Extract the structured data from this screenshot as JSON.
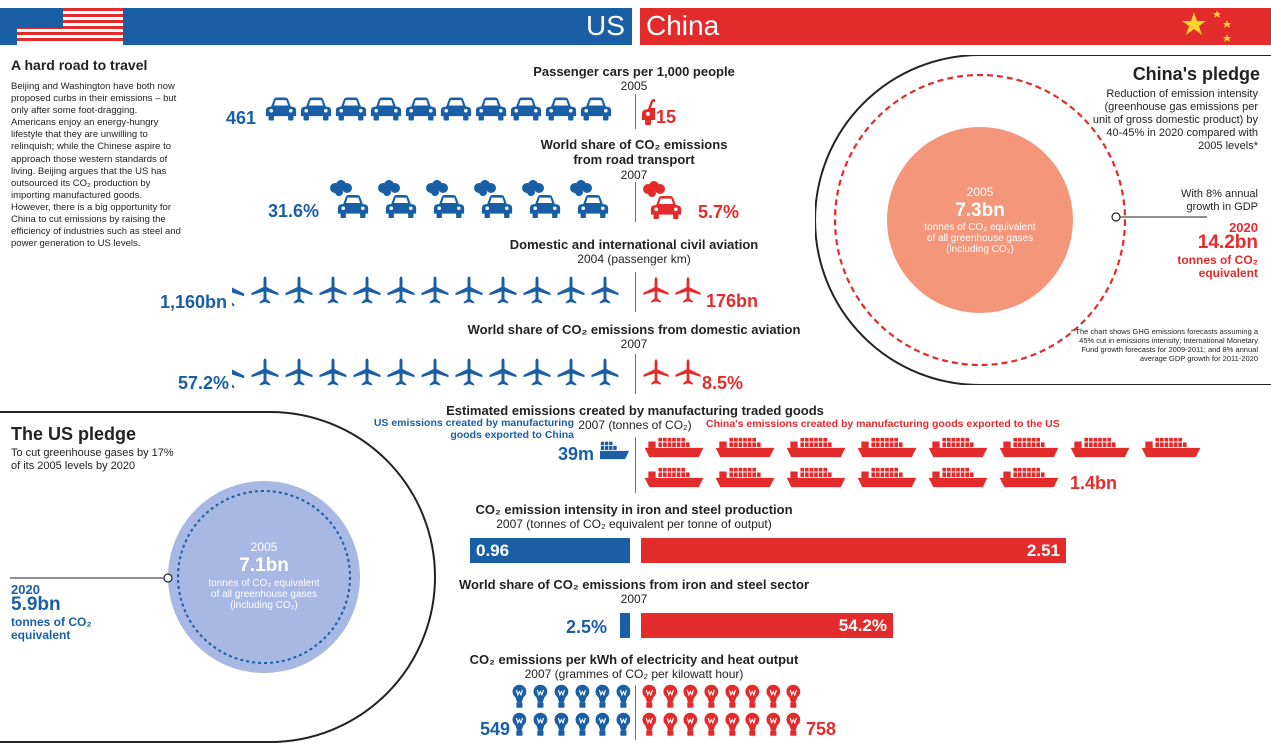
{
  "header": {
    "us_label": "US",
    "china_label": "China",
    "colors": {
      "us_blue": "#1a5fa6",
      "china_red": "#e42b2b",
      "pledge_orange": "#f4967a",
      "pledge_lavender": "#a7b8e4"
    }
  },
  "intro": {
    "title": "A hard road to travel",
    "body": "Beijing and Washington have both now proposed curbs in their emissions – but only after some foot-dragging. Americans enjoy an energy-hungry lifestyle that they are unwilling to relinquish; while the Chinese aspire to approach those western standards of living. Beijing argues that the US has outsourced its CO₂ production by importing manufactured goods. However, there is a big opportunity for China to cut emissions by raising the efficiency of industries such as steel and power generation to US levels."
  },
  "cars": {
    "title": "Passenger cars per 1,000 people",
    "subtitle": "2005",
    "us_value": "461",
    "china_value": "15",
    "icon": "car-icon"
  },
  "road": {
    "title_line1": "World share of CO₂ emissions",
    "title_line2": "from road transport",
    "subtitle": "2007",
    "us_value": "31.6%",
    "china_value": "5.7%",
    "icon": "smoking-car-icon"
  },
  "aviation": {
    "title": "Domestic and international civil aviation",
    "subtitle": "2004 (passenger km)",
    "us_value": "1,160bn",
    "china_value": "176bn",
    "icon": "plane-icon"
  },
  "aviation_share": {
    "title": "World share of CO₂ emissions from domestic aviation",
    "subtitle": "2007",
    "us_value": "57.2%",
    "china_value": "8.5%"
  },
  "manufacturing": {
    "title": "Estimated emissions created by manufacturing traded goods",
    "subtitle": "2007 (tonnes of CO₂)",
    "us_label_line1": "US emissions created by manufacturing",
    "us_label_line2": "goods exported to China",
    "china_label": "China's emissions created by manufacturing goods exported to the US",
    "us_value": "39m",
    "china_value": "1.4bn",
    "icon": "cargo-ship-icon"
  },
  "steel_intensity": {
    "title": "CO₂ emission intensity in iron and steel production",
    "subtitle": "2007 (tonnes of CO₂ equivalent per tonne of output)",
    "us_value": "0.96",
    "china_value": "2.51",
    "us_num": 0.96,
    "china_num": 2.51
  },
  "steel_share": {
    "title": "World share of CO₂ emissions from iron and steel sector",
    "subtitle": "2007",
    "us_value": "2.5%",
    "china_value": "54.2%",
    "us_num": 2.5,
    "china_num": 54.2
  },
  "electricity": {
    "title": "CO₂ emissions per kWh of electricity and heat output",
    "subtitle": "2007 (grammes of CO₂ per kilowatt hour)",
    "us_value": "549",
    "china_value": "758",
    "icon": "light-bulb-icon"
  },
  "china_pledge": {
    "title": "China's pledge",
    "description": "Reduction of emission intensity (greenhouse gas emissions per unit of gross domestic product) by 40-45% in 2020 compared with 2005 levels*",
    "growth_note": "With 8% annual growth in GDP",
    "circle_year": "2005",
    "circle_value": "7.3bn",
    "circle_text": "tonnes of CO₂ equivalent of all greenhouse gases (including CO₂)",
    "target_year": "2020",
    "target_value": "14.2bn",
    "target_text": "tonnes of CO₂ equivalent",
    "footnote": "* The chart shows GHG emissions forecasts assuming a 45% cut in emissions intensity; International Monetary Fund growth forecasts for 2009-2011; and 8% annual average GDP growth for 2011-2020"
  },
  "us_pledge": {
    "title": "The US pledge",
    "description": "To cut greenhouse gases by 17% of its 2005 levels by 2020",
    "circle_year": "2005",
    "circle_value": "7.1bn",
    "circle_text": "tonnes of CO₂ equivalent of all greenhouse gases (including CO₂)",
    "target_year": "2020",
    "target_value": "5.9bn",
    "target_text": "tonnes of CO₂ equivalent"
  }
}
